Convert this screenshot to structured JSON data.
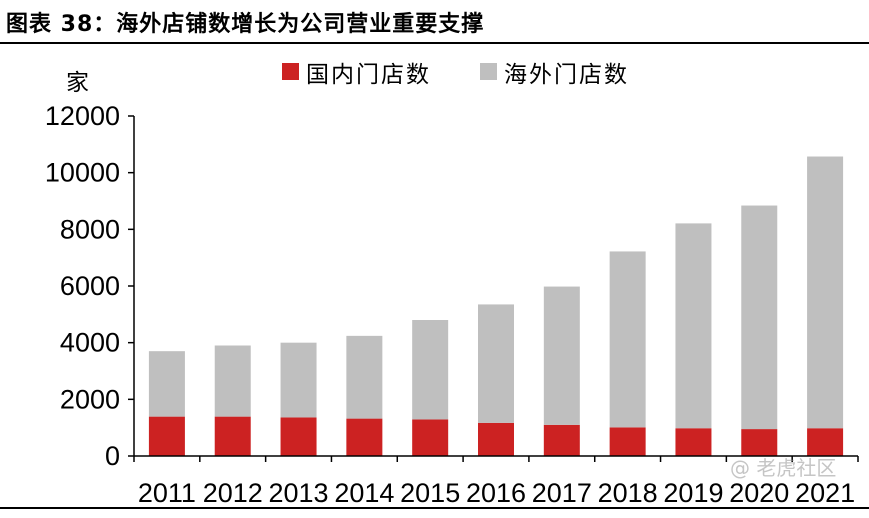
{
  "figure_title": "图表 38：海外店铺数增长为公司营业重要支撑",
  "watermark": "@ 老虎社区",
  "colors": {
    "domestic": "#cc2222",
    "overseas": "#bfbfbf",
    "axis": "#000000"
  },
  "chart_data": {
    "type": "bar",
    "stacked": true,
    "title": "",
    "xlabel": "",
    "ylabel": "家",
    "categories": [
      "2011",
      "2012",
      "2013",
      "2014",
      "2015",
      "2016",
      "2017",
      "2018",
      "2019",
      "2020",
      "2021"
    ],
    "series": [
      {
        "name": "国内门店数",
        "values": [
          1390,
          1390,
          1360,
          1320,
          1290,
          1170,
          1100,
          1010,
          980,
          950,
          980
        ]
      },
      {
        "name": "海外门店数",
        "values": [
          2310,
          2510,
          2640,
          2920,
          3510,
          4180,
          4880,
          6210,
          7230,
          7890,
          9590
        ]
      }
    ],
    "ylim": [
      0,
      12000
    ],
    "yticks": [
      0,
      2000,
      4000,
      6000,
      8000,
      10000,
      12000
    ],
    "legend_position": "top",
    "grid": false
  }
}
